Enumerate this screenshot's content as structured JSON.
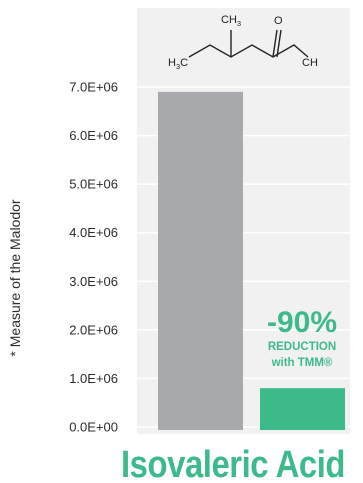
{
  "chart_data": {
    "type": "bar",
    "title": "Isovaleric Acid",
    "ylabel": "* Measure of the Malodor",
    "xlabel": "",
    "ylim": [
      0,
      7500000
    ],
    "grid": true,
    "yticks": [
      "0.0E+00",
      "1.0E+06",
      "2.0E+06",
      "3.0E+06",
      "4.0E+06",
      "5.0E+06",
      "6.0E+06",
      "7.0E+06"
    ],
    "yticks_values": [
      0,
      1000000,
      2000000,
      3000000,
      4000000,
      5000000,
      6000000,
      7000000
    ],
    "values": [
      6900000,
      800000
    ],
    "colors": [
      "#a7a9ac",
      "#3dba8a"
    ],
    "annotation": {
      "percent": "-90%",
      "line1": "REDUCTION",
      "line2": "with TMM®"
    },
    "molecule": {
      "top_group": "CH",
      "top_sub": "3",
      "left_group": "H",
      "left_sub": "3",
      "left_c": "C",
      "oxygen": "O",
      "right_group": "CH"
    },
    "plot_background": "#f1f1f2",
    "gridline_color": "#ffffff"
  }
}
